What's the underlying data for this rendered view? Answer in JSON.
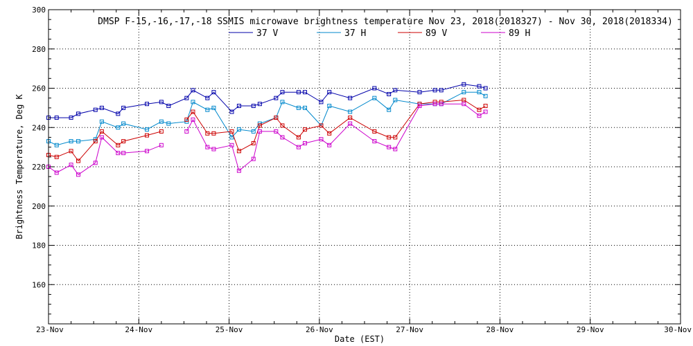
{
  "chart_data": {
    "type": "line",
    "title": "DMSP F-15,-16,-17,-18 SSMIS microwave brightness temperature Nov 23, 2018(2018327) - Nov 30, 2018(2018334)",
    "xlabel": "Date (EST)",
    "ylabel": "Brightness Temperature, Deg K",
    "xlim": [
      0,
      7
    ],
    "ylim": [
      140,
      300
    ],
    "x_ticks": [
      0,
      1,
      2,
      3,
      4,
      5,
      6,
      7
    ],
    "x_tick_labels": [
      "23-Nov",
      "24-Nov",
      "25-Nov",
      "26-Nov",
      "27-Nov",
      "28-Nov",
      "29-Nov",
      "30-Nov"
    ],
    "y_ticks": [
      160,
      180,
      200,
      220,
      240,
      260,
      280,
      300
    ],
    "y_tick_labels": [
      "160",
      "180",
      "200",
      "220",
      "240",
      "260",
      "280",
      "300"
    ],
    "grid": true,
    "series": [
      {
        "name": "37 V",
        "color": "#0000aa",
        "segments": [
          [
            [
              0.0,
              245
            ],
            [
              0.09,
              245
            ],
            [
              0.25,
              245
            ],
            [
              0.33,
              247
            ],
            [
              0.52,
              249
            ],
            [
              0.59,
              250
            ],
            [
              0.77,
              247
            ],
            [
              0.83,
              250
            ],
            [
              1.09,
              252
            ],
            [
              1.25,
              253
            ],
            [
              1.33,
              251
            ],
            [
              1.53,
              255
            ],
            [
              1.6,
              259
            ],
            [
              1.76,
              255
            ],
            [
              1.83,
              258
            ],
            [
              2.03,
              248
            ],
            [
              2.11,
              251
            ],
            [
              2.27,
              251
            ],
            [
              2.34,
              252
            ],
            [
              2.52,
              255
            ],
            [
              2.59,
              258
            ],
            [
              2.77,
              258
            ],
            [
              2.84,
              258
            ],
            [
              3.02,
              253
            ],
            [
              3.11,
              258
            ],
            [
              3.34,
              255
            ],
            [
              3.61,
              260
            ],
            [
              3.77,
              257
            ],
            [
              3.84,
              259
            ],
            [
              4.11,
              258
            ],
            [
              4.28,
              259
            ],
            [
              4.35,
              259
            ],
            [
              4.6,
              262
            ],
            [
              4.77,
              261
            ],
            [
              4.84,
              260
            ]
          ]
        ]
      },
      {
        "name": "37 H",
        "color": "#0088cc",
        "segments": [
          [
            [
              0.0,
              233
            ],
            [
              0.09,
              231
            ],
            [
              0.25,
              233
            ],
            [
              0.33,
              233
            ],
            [
              0.52,
              234
            ],
            [
              0.59,
              243
            ],
            [
              0.77,
              240
            ],
            [
              0.83,
              242
            ],
            [
              1.09,
              239
            ],
            [
              1.25,
              243
            ],
            [
              1.33,
              242
            ],
            [
              1.53,
              243
            ],
            [
              1.6,
              253
            ],
            [
              1.76,
              249
            ],
            [
              1.83,
              250
            ],
            [
              2.03,
              235
            ],
            [
              2.11,
              239
            ],
            [
              2.27,
              238
            ],
            [
              2.34,
              242
            ],
            [
              2.52,
              245
            ],
            [
              2.59,
              253
            ],
            [
              2.77,
              250
            ],
            [
              2.84,
              250
            ],
            [
              3.02,
              241
            ],
            [
              3.11,
              251
            ],
            [
              3.34,
              248
            ],
            [
              3.61,
              255
            ],
            [
              3.77,
              249
            ],
            [
              3.84,
              254
            ],
            [
              4.11,
              252
            ],
            [
              4.28,
              252
            ],
            [
              4.35,
              252
            ],
            [
              4.6,
              258
            ],
            [
              4.77,
              258
            ],
            [
              4.84,
              256
            ]
          ]
        ]
      },
      {
        "name": "89 V",
        "color": "#cc0000",
        "segments": [
          [
            [
              0.0,
              226
            ],
            [
              0.09,
              225
            ],
            [
              0.25,
              228
            ],
            [
              0.33,
              223
            ],
            [
              0.52,
              233
            ],
            [
              0.59,
              238
            ],
            [
              0.77,
              231
            ],
            [
              0.83,
              233
            ],
            [
              1.09,
              236
            ],
            [
              1.25,
              238
            ]
          ],
          [
            [
              1.53,
              244
            ],
            [
              1.6,
              248
            ],
            [
              1.76,
              237
            ],
            [
              1.83,
              237
            ],
            [
              2.03,
              238
            ],
            [
              2.11,
              228
            ],
            [
              2.27,
              232
            ],
            [
              2.34,
              241
            ],
            [
              2.52,
              245
            ],
            [
              2.59,
              241
            ],
            [
              2.77,
              235
            ],
            [
              2.84,
              239
            ],
            [
              3.02,
              241
            ],
            [
              3.11,
              237
            ],
            [
              3.34,
              245
            ],
            [
              3.61,
              238
            ],
            [
              3.77,
              235
            ],
            [
              3.84,
              235
            ],
            [
              4.11,
              252
            ],
            [
              4.28,
              253
            ],
            [
              4.35,
              253
            ],
            [
              4.6,
              254
            ],
            [
              4.77,
              249
            ],
            [
              4.84,
              251
            ]
          ]
        ]
      },
      {
        "name": "89 H",
        "color": "#cc00cc",
        "segments": [
          [
            [
              0.0,
              220
            ],
            [
              0.09,
              217
            ],
            [
              0.25,
              221
            ],
            [
              0.33,
              216
            ],
            [
              0.52,
              222
            ],
            [
              0.59,
              235
            ],
            [
              0.77,
              227
            ],
            [
              0.83,
              227
            ],
            [
              1.09,
              228
            ],
            [
              1.25,
              231
            ]
          ],
          [
            [
              1.53,
              238
            ],
            [
              1.6,
              244
            ],
            [
              1.76,
              230
            ],
            [
              1.83,
              229
            ],
            [
              2.03,
              231
            ],
            [
              2.11,
              218
            ],
            [
              2.27,
              224
            ],
            [
              2.34,
              238
            ],
            [
              2.52,
              238
            ],
            [
              2.59,
              235
            ],
            [
              2.77,
              230
            ],
            [
              2.84,
              232
            ],
            [
              3.02,
              234
            ],
            [
              3.11,
              231
            ],
            [
              3.34,
              242
            ],
            [
              3.61,
              233
            ],
            [
              3.77,
              230
            ],
            [
              3.84,
              229
            ],
            [
              4.11,
              251
            ],
            [
              4.28,
              252
            ],
            [
              4.35,
              252
            ],
            [
              4.6,
              252
            ],
            [
              4.77,
              246
            ],
            [
              4.84,
              248
            ]
          ]
        ]
      }
    ]
  }
}
